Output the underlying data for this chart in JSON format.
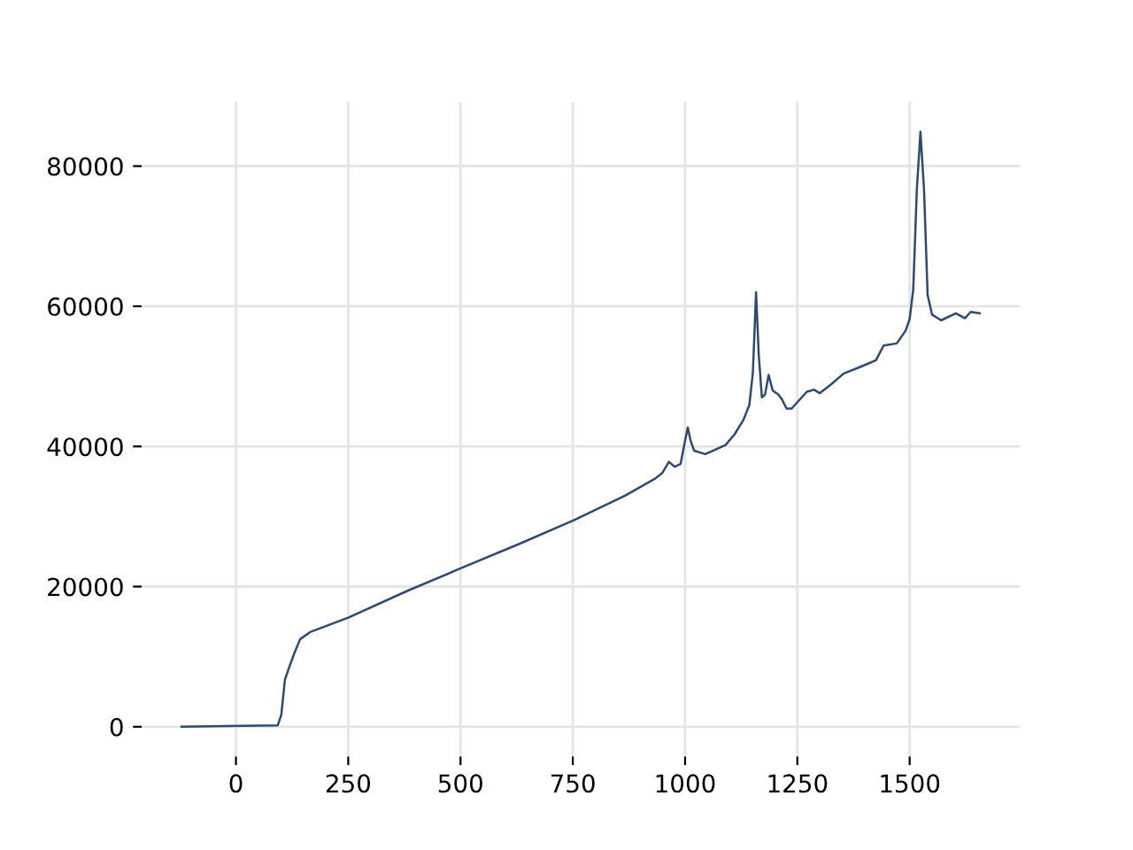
{
  "chart_data": {
    "type": "line",
    "x": [
      -121,
      93,
      101,
      109,
      118,
      130,
      143,
      165,
      251,
      382,
      500,
      631,
      753,
      867,
      933,
      949,
      964,
      977,
      990,
      999,
      1006,
      1012,
      1020,
      1045,
      1090,
      1110,
      1130,
      1143,
      1151,
      1158,
      1164,
      1171,
      1178,
      1186,
      1195,
      1208,
      1215,
      1226,
      1237,
      1271,
      1287,
      1300,
      1326,
      1353,
      1392,
      1425,
      1442,
      1471,
      1491,
      1500,
      1508,
      1516,
      1524,
      1532,
      1540,
      1550,
      1570,
      1603,
      1623,
      1636,
      1656
    ],
    "series": [
      {
        "color": "#2e4a6e",
        "values": [
          0,
          200,
          1700,
          6700,
          8400,
          10500,
          12500,
          13500,
          15600,
          19400,
          22600,
          26100,
          29500,
          33000,
          35400,
          36200,
          37800,
          37100,
          37500,
          40500,
          42700,
          40900,
          39400,
          38900,
          40200,
          41700,
          43800,
          45900,
          50600,
          62000,
          53100,
          47000,
          47400,
          50200,
          48000,
          47400,
          46800,
          45400,
          45400,
          47800,
          48100,
          47600,
          48900,
          50400,
          51400,
          52300,
          54400,
          54700,
          56500,
          58200,
          62400,
          76700,
          84900,
          76700,
          61600,
          58800,
          58000,
          59000,
          58300,
          59200,
          59000
        ]
      }
    ],
    "xlim": [
      -210,
      1745
    ],
    "ylim": [
      -4245,
      89150
    ],
    "xticks": [
      0,
      250,
      500,
      750,
      1000,
      1250,
      1500
    ],
    "yticks": [
      0,
      20000,
      40000,
      60000,
      80000
    ],
    "grid": true,
    "legend": false,
    "marker": "none",
    "line_style": "solid"
  }
}
